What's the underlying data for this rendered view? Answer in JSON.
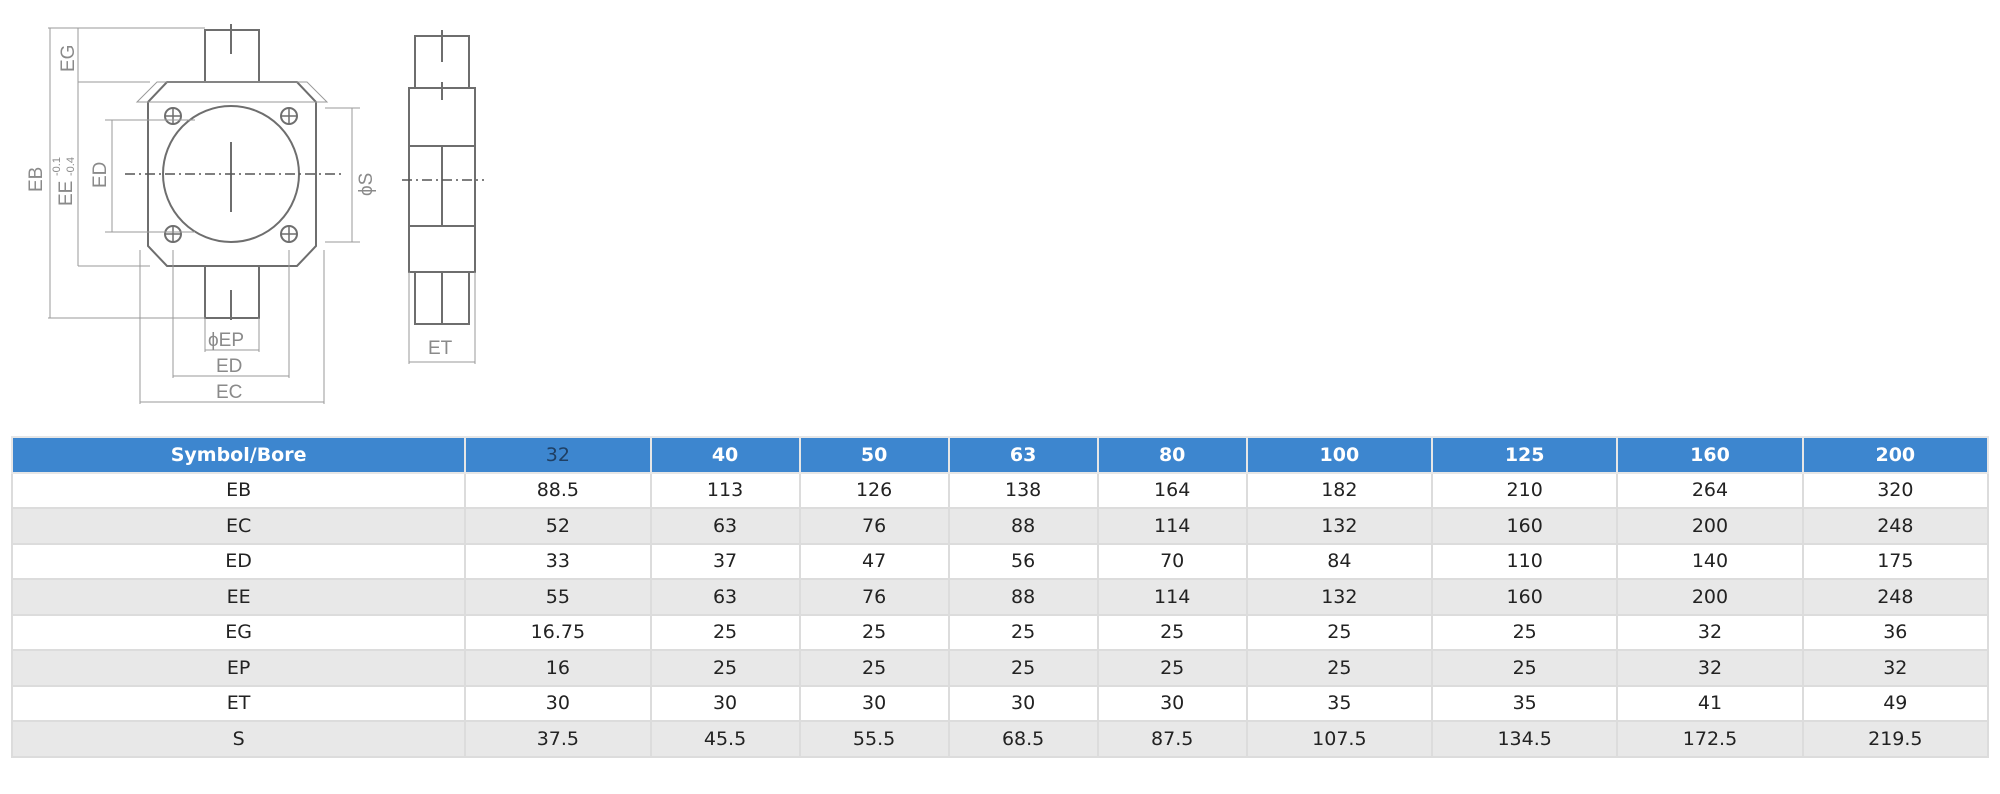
{
  "drawing": {
    "front_labels": [
      "EG",
      "EB",
      "EE",
      "-0.1",
      "-0.4",
      "ED",
      "ϕS",
      "ϕEP",
      "ED",
      "EC"
    ],
    "side_label": "ET"
  },
  "table": {
    "header_label": "Symbol/Bore",
    "bores": [
      "32",
      "40",
      "50",
      "63",
      "80",
      "100",
      "125",
      "160",
      "200"
    ],
    "rows": [
      {
        "symbol": "EB",
        "values": [
          "88.5",
          "113",
          "126",
          "138",
          "164",
          "182",
          "210",
          "264",
          "320"
        ]
      },
      {
        "symbol": "EC",
        "values": [
          "52",
          "63",
          "76",
          "88",
          "114",
          "132",
          "160",
          "200",
          "248"
        ]
      },
      {
        "symbol": "ED",
        "values": [
          "33",
          "37",
          "47",
          "56",
          "70",
          "84",
          "110",
          "140",
          "175"
        ]
      },
      {
        "symbol": "EE",
        "values": [
          "55",
          "63",
          "76",
          "88",
          "114",
          "132",
          "160",
          "200",
          "248"
        ]
      },
      {
        "symbol": "EG",
        "values": [
          "16.75",
          "25",
          "25",
          "25",
          "25",
          "25",
          "25",
          "32",
          "36"
        ]
      },
      {
        "symbol": "EP",
        "values": [
          "16",
          "25",
          "25",
          "25",
          "25",
          "25",
          "25",
          "32",
          "32"
        ]
      },
      {
        "symbol": "ET",
        "values": [
          "30",
          "30",
          "30",
          "30",
          "30",
          "35",
          "35",
          "41",
          "49"
        ]
      },
      {
        "symbol": "S",
        "values": [
          "37.5",
          "45.5",
          "55.5",
          "68.5",
          "87.5",
          "107.5",
          "134.5",
          "172.5",
          "219.5"
        ]
      }
    ]
  }
}
